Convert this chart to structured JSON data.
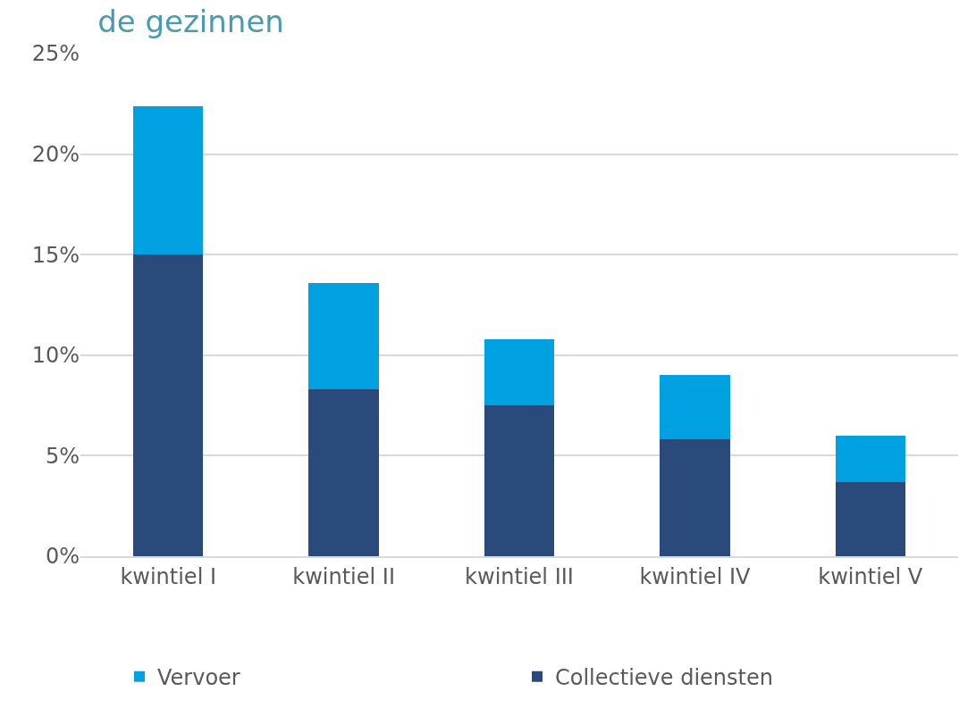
{
  "chart_data": {
    "type": "bar",
    "title": "de gezinnen",
    "stacked": true,
    "grid": "y",
    "legend": "bottom",
    "categories": [
      "kwintiel I",
      "kwintiel II",
      "kwintiel III",
      "kwintiel IV",
      "kwintiel V"
    ],
    "series": [
      {
        "name": "Collectieve diensten",
        "color": "#2a4a7c",
        "values": [
          15.0,
          8.3,
          7.5,
          5.8,
          3.7
        ]
      },
      {
        "name": "Vervoer",
        "color": "#00a1e0",
        "values": [
          7.4,
          5.3,
          3.3,
          3.2,
          2.3
        ]
      }
    ],
    "ylim": [
      0,
      25
    ],
    "yticks": [
      {
        "value": 0,
        "label": "0%"
      },
      {
        "value": 5,
        "label": "5%"
      },
      {
        "value": 10,
        "label": "10%"
      },
      {
        "value": 15,
        "label": "15%"
      },
      {
        "value": 20,
        "label": "20%"
      },
      {
        "value": 25,
        "label": "25%"
      }
    ]
  }
}
